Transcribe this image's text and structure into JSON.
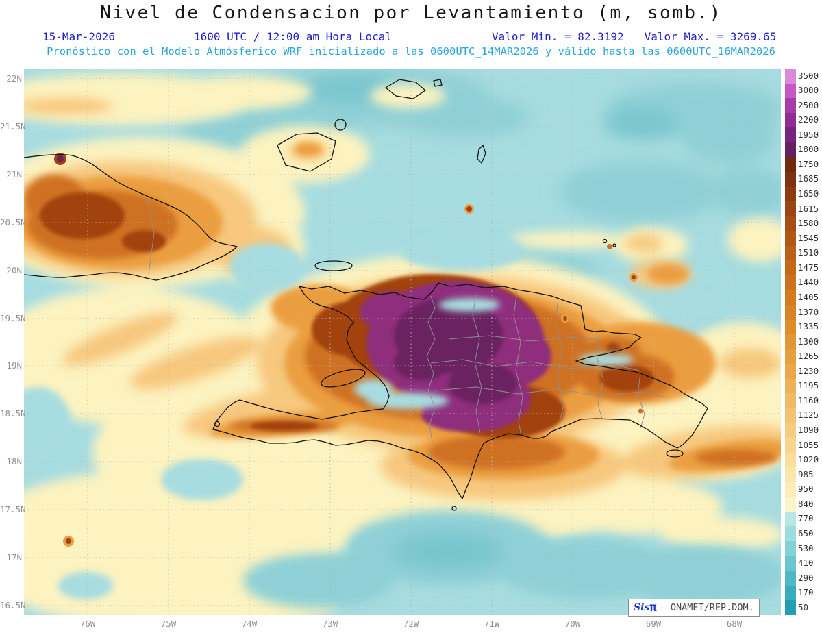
{
  "header": {
    "title": "Nivel de Condensacion por Levantamiento (m, somb.)",
    "date": "15-Mar-2026",
    "time": "1600 UTC / 12:00 am Hora Local",
    "min_label": "Valor Min. = 82.3192",
    "max_label": "Valor Max. = 3269.65",
    "model_line": "Pronóstico con el Modelo Atmósferico WRF inicializado a las 0600UTC_14MAR2026 y válido hasta las  0600UTC_16MAR2026"
  },
  "axes": {
    "lat_labels": [
      "22N",
      "21.5N",
      "21N",
      "20.5N",
      "20N",
      "19.5N",
      "19N",
      "18.5N",
      "18N",
      "17.5N",
      "17N",
      "16.5N"
    ],
    "lon_labels": [
      "76W",
      "75W",
      "74W",
      "73W",
      "72W",
      "71W",
      "70W",
      "69W",
      "68W"
    ]
  },
  "colorbar": {
    "levels": [
      "3500",
      "3000",
      "2500",
      "2200",
      "1950",
      "1800",
      "1750",
      "1685",
      "1650",
      "1615",
      "1580",
      "1545",
      "1510",
      "1475",
      "1440",
      "1405",
      "1370",
      "1335",
      "1300",
      "1265",
      "1230",
      "1195",
      "1160",
      "1125",
      "1090",
      "1055",
      "1020",
      "985",
      "950",
      "840",
      "770",
      "650",
      "530",
      "410",
      "290",
      "170",
      "50"
    ],
    "colors": [
      "#da8ad8",
      "#c558c5",
      "#a93aa9",
      "#8f2d96",
      "#78247f",
      "#64205f",
      "#6f2a10",
      "#7e3310",
      "#8d3c11",
      "#9a4513",
      "#a64e14",
      "#b15716",
      "#bb6018",
      "#c4691a",
      "#cc721c",
      "#d37b1f",
      "#d98424",
      "#de8d2b",
      "#e39634",
      "#e79f3e",
      "#eba84a",
      "#eeb157",
      "#f1ba64",
      "#f4c372",
      "#f6cc80",
      "#f8d58e",
      "#fade9c",
      "#fbe7ab",
      "#fceeba",
      "#fdf5c9",
      "#b9e6e3",
      "#9fdcdd",
      "#85d0d6",
      "#6bc4cf",
      "#51b7c7",
      "#38abbf",
      "#209eb6"
    ]
  },
  "watermark": {
    "brand": "Sis",
    "pi": "π",
    "rest": "- ONAMET/REP.DOM."
  },
  "map_palette": {
    "ocean": "#a7dce0",
    "teal2": "#8fd0d6",
    "teal3": "#79c6cf",
    "yellow": "#fcf3c0",
    "or1": "#f7c87e",
    "or2": "#eb9e41",
    "or3": "#cf7120",
    "brown": "#a2430e",
    "purple": "#8e2f7c",
    "purple2": "#6b2061",
    "coast": "#111111",
    "admin": "#8f8f8f",
    "grid": "#b5b5b5"
  },
  "chart_data": {
    "type": "heatmap",
    "title": "Nivel de Condensacion por Levantamiento (m, somb.)",
    "variable": "Lifting Condensation Level (shaded)",
    "units": "m",
    "date": "15-Mar-2026",
    "valid_time": "1600 UTC / 12:00 am Hora Local",
    "model": "WRF",
    "initialized": "0600UTC_14MAR2026",
    "valid_until": "0600UTC_16MAR2026",
    "value_min": 82.3192,
    "value_max": 3269.65,
    "x_ticks_lon": [
      "76W",
      "75W",
      "74W",
      "73W",
      "72W",
      "71W",
      "70W",
      "69W",
      "68W"
    ],
    "y_ticks_lat": [
      "22N",
      "21.5N",
      "21N",
      "20.5N",
      "20N",
      "19.5N",
      "19N",
      "18.5N",
      "18N",
      "17.5N",
      "17N",
      "16.5N"
    ],
    "contour_levels_m": [
      50,
      170,
      290,
      410,
      530,
      650,
      770,
      840,
      950,
      985,
      1020,
      1055,
      1090,
      1125,
      1160,
      1195,
      1230,
      1265,
      1300,
      1335,
      1370,
      1405,
      1440,
      1475,
      1510,
      1545,
      1580,
      1615,
      1650,
      1685,
      1750,
      1800,
      1950,
      2200,
      2500,
      3000,
      3500
    ],
    "legend_position": "right",
    "grid": true,
    "regions": [
      {
        "area": "ocean and coastal waters around the islands",
        "approx_value_m": "82-840",
        "shade": "teal"
      },
      {
        "area": "open Caribbean south and west of Hispaniola, lowland bands",
        "approx_value_m": "840-1300",
        "shade": "pale yellow to light orange"
      },
      {
        "area": "eastern Cuba (Sierra Maestra)",
        "approx_value_m": "1300-2500",
        "shade": "orange-brown with small dark purple core"
      },
      {
        "area": "central Hispaniola (Cordillera Central, Haiti highlands)",
        "approx_value_m": "1950-3269.65",
        "shade": "dark purple maximum"
      },
      {
        "area": "eastern Dominican Republic and Samaná",
        "approx_value_m": "1300-1750",
        "shade": "orange"
      },
      {
        "area": "isolated small maxima (specks over peaks and cays)",
        "approx_value_m": "1500-2200",
        "shade": "small red-brown dots"
      }
    ]
  }
}
